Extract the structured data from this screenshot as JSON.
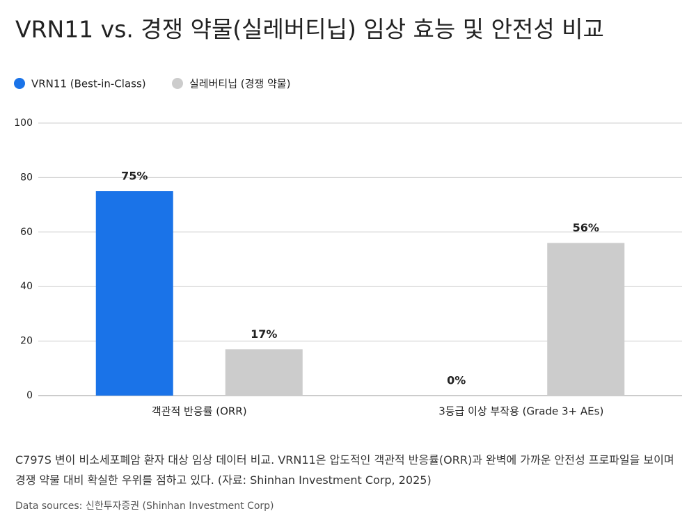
{
  "chart_data": {
    "type": "bar",
    "title": "VRN11 vs. 경쟁 약물(실레버티닙) 임상 효능 및 안전성 비교",
    "categories": [
      "객관적 반응률 (ORR)",
      "3등급 이상 부작용 (Grade 3+ AEs)"
    ],
    "series": [
      {
        "name": "VRN11 (Best-in-Class)",
        "color": "#1a73e8",
        "values": [
          75,
          0
        ],
        "value_labels": [
          "75%",
          "0%"
        ]
      },
      {
        "name": "실레버티닙 (경쟁 약물)",
        "color": "#cccccc",
        "values": [
          17,
          56
        ],
        "value_labels": [
          "17%",
          "56%"
        ]
      }
    ],
    "ylim": [
      0,
      100
    ],
    "yticks": [
      0,
      20,
      40,
      60,
      80,
      100
    ],
    "grid": true,
    "description": "C797S 변이 비소세포폐암 환자 대상 임상 데이터 비교. VRN11은 압도적인 객관적 반응률(ORR)과 완벽에 가까운 안전성 프로파일을 보이며 경쟁 약물 대비 확실한 우위를 점하고 있다. (자료: Shinhan Investment Corp, 2025)",
    "source": "Data sources: 신한투자증권 (Shinhan Investment Corp)"
  }
}
